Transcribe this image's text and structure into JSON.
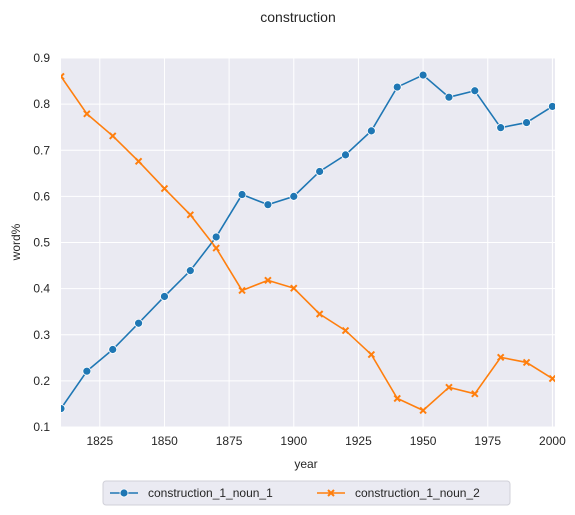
{
  "chart_data": {
    "type": "line",
    "title": "construction",
    "xlabel": "year",
    "ylabel": "word%",
    "xlim": [
      1810,
      2001
    ],
    "ylim": [
      0.1,
      0.9
    ],
    "x_ticks": [
      "1825",
      "1850",
      "1875",
      "1900",
      "1925",
      "1950",
      "1975",
      "2000"
    ],
    "y_ticks": [
      "0.1",
      "0.2",
      "0.3",
      "0.4",
      "0.5",
      "0.6",
      "0.7",
      "0.8",
      "0.9"
    ],
    "x": [
      1810,
      1820,
      1830,
      1840,
      1850,
      1860,
      1870,
      1880,
      1890,
      1900,
      1910,
      1920,
      1930,
      1940,
      1950,
      1960,
      1970,
      1980,
      1990,
      2000
    ],
    "grid": true,
    "legend_placement": "bottom-center",
    "series": [
      {
        "name": "construction_1_noun_1",
        "color": "#1f77b4",
        "marker": "circle",
        "values": [
          0.14,
          0.221,
          0.268,
          0.325,
          0.383,
          0.439,
          0.512,
          0.604,
          0.582,
          0.6,
          0.654,
          0.69,
          0.742,
          0.837,
          0.863,
          0.815,
          0.829,
          0.749,
          0.76,
          0.795
        ]
      },
      {
        "name": "construction_1_noun_2",
        "color": "#ff7f0e",
        "marker": "x",
        "values": [
          0.86,
          0.779,
          0.731,
          0.676,
          0.617,
          0.56,
          0.488,
          0.396,
          0.418,
          0.401,
          0.345,
          0.309,
          0.257,
          0.162,
          0.136,
          0.186,
          0.172,
          0.251,
          0.24,
          0.205
        ]
      }
    ]
  }
}
